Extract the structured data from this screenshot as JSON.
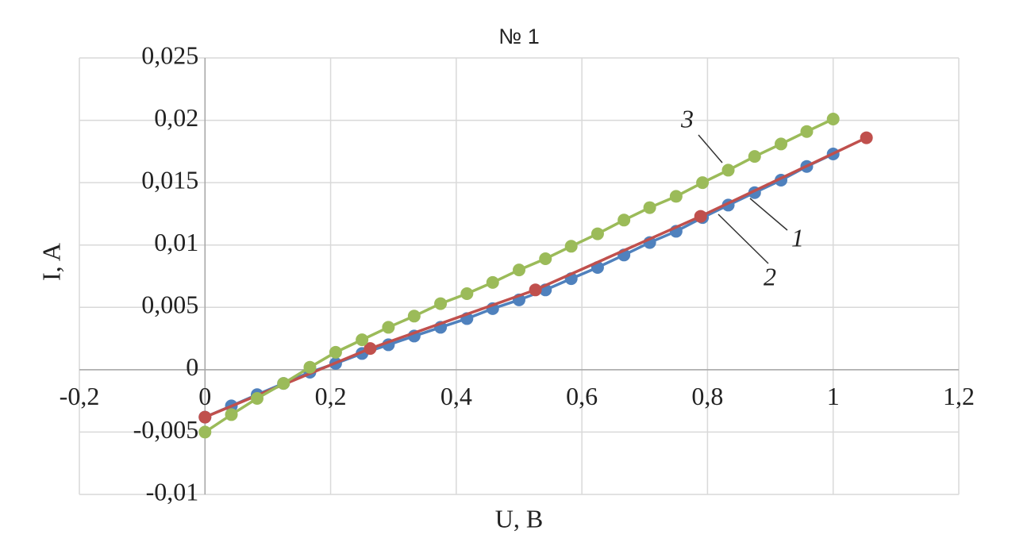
{
  "chart_data": {
    "type": "line",
    "title": "№ 1",
    "x_label": "U, B",
    "y_label": "I, A",
    "xlim": [
      -0.2,
      1.2
    ],
    "xticks": [
      {
        "value": -0.2,
        "label": "-0,2"
      },
      0,
      {
        "value": 0.2,
        "label": "0,2"
      },
      {
        "value": 0.4,
        "label": "0,4"
      },
      {
        "value": 0.6,
        "label": "0,6"
      },
      {
        "value": 0.8,
        "label": "0,8"
      },
      1,
      {
        "value": 1.2,
        "label": "1,2"
      }
    ],
    "ylim": [
      -0.01,
      0.025
    ],
    "yticks": [
      {
        "value": -0.01,
        "label": "-0,01"
      },
      {
        "value": -0.005,
        "label": "-0,005"
      },
      0,
      {
        "value": 0.005,
        "label": "0,005"
      },
      {
        "value": 0.01,
        "label": "0,01"
      },
      {
        "value": 0.015,
        "label": "0,015"
      },
      {
        "value": 0.02,
        "label": "0,02"
      },
      {
        "value": 0.025,
        "label": "0,025"
      }
    ],
    "grid": true,
    "series": [
      {
        "color": "#4f81bd",
        "x": [
          0,
          0.042,
          0.083,
          0.125,
          0.167,
          0.208,
          0.25,
          0.292,
          0.333,
          0.375,
          0.417,
          0.458,
          0.5,
          0.542,
          0.583,
          0.625,
          0.667,
          0.708,
          0.75,
          0.792,
          0.833,
          0.875,
          0.917,
          0.958,
          1
        ],
        "values": [
          -0.0038,
          -0.0029,
          -0.002,
          -0.0011,
          -0.0002,
          0.0005,
          0.0013,
          0.002,
          0.0027,
          0.0034,
          0.0041,
          0.0049,
          0.0056,
          0.0064,
          0.0073,
          0.0082,
          0.0092,
          0.0102,
          0.0111,
          0.0122,
          0.0132,
          0.0142,
          0.0152,
          0.0163,
          0.0173
        ]
      },
      {
        "color": "#c0504d",
        "x": [
          0,
          0.263,
          0.526,
          0.789,
          1.053
        ],
        "values": [
          -0.0038,
          0.0017,
          0.0064,
          0.0123,
          0.0186
        ]
      },
      {
        "color": "#9bbb59",
        "x": [
          0,
          0.042,
          0.083,
          0.125,
          0.167,
          0.208,
          0.25,
          0.292,
          0.333,
          0.375,
          0.417,
          0.458,
          0.5,
          0.542,
          0.583,
          0.625,
          0.667,
          0.708,
          0.75,
          0.792,
          0.833,
          0.875,
          0.917,
          0.958,
          1
        ],
        "values": [
          -0.005,
          -0.0036,
          -0.0023,
          -0.0011,
          0.0002,
          0.0014,
          0.0024,
          0.0034,
          0.0043,
          0.0053,
          0.0061,
          0.007,
          0.008,
          0.0089,
          0.0099,
          0.0109,
          0.012,
          0.013,
          0.0139,
          0.015,
          0.016,
          0.0171,
          0.0181,
          0.0191,
          0.0201
        ]
      }
    ],
    "annotations": [
      "1",
      "2",
      "3"
    ]
  }
}
